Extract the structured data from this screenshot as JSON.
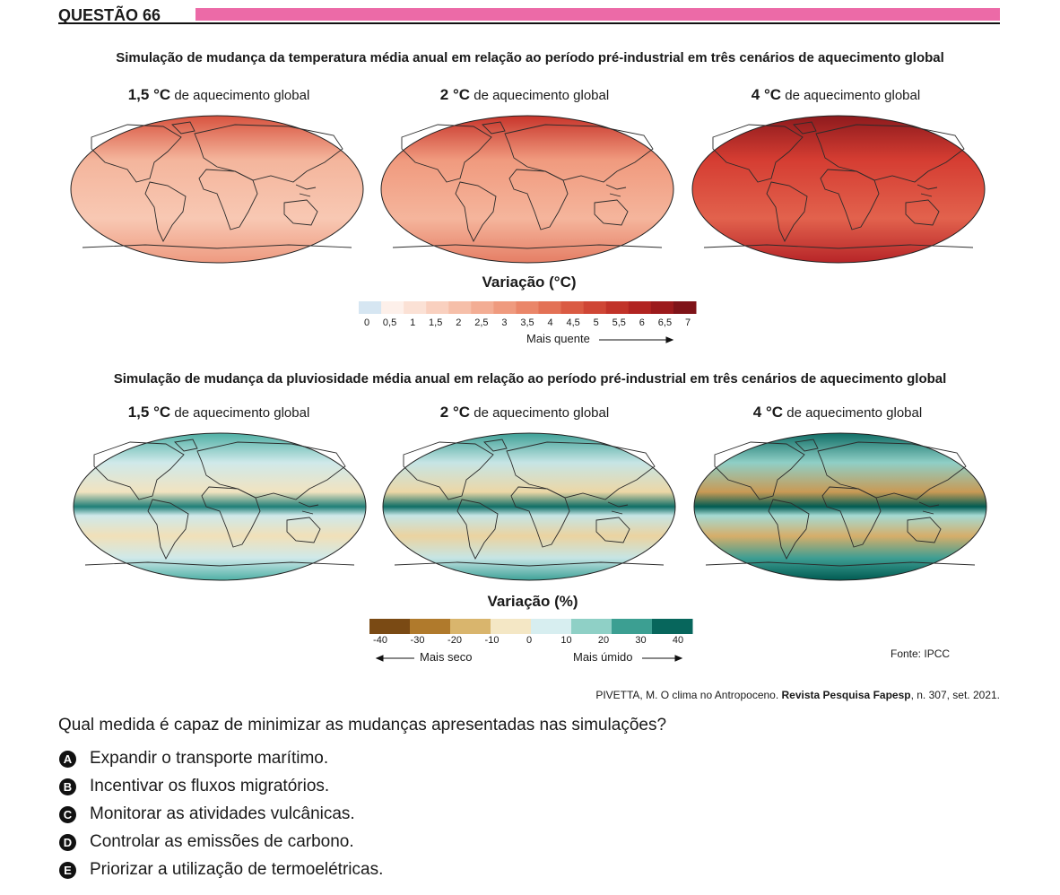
{
  "header": {
    "title": "QUESTÃO 66"
  },
  "figure1": {
    "title": "Simulação de mudança da temperatura média anual em relação ao período pré-industrial em três cenários de aquecimento global",
    "panels": [
      {
        "level": "1,5 °C",
        "suffix": "de aquecimento global"
      },
      {
        "level": "2 °C",
        "suffix": "de aquecimento global"
      },
      {
        "level": "4 °C",
        "suffix": "de aquecimento global"
      }
    ],
    "legend": {
      "title": "Variação (°C)",
      "ticks": [
        "0",
        "0,5",
        "1",
        "1,5",
        "2",
        "2,5",
        "3",
        "3,5",
        "4",
        "4,5",
        "5",
        "5,5",
        "6",
        "6,5",
        "7"
      ],
      "note": "Mais quente"
    }
  },
  "figure2": {
    "title": "Simulação de mudança da pluviosidade média anual em relação ao período pré-industrial em três cenários de aquecimento global",
    "panels": [
      {
        "level": "1,5 °C",
        "suffix": "de aquecimento global"
      },
      {
        "level": "2 °C",
        "suffix": "de aquecimento global"
      },
      {
        "level": "4 °C",
        "suffix": "de aquecimento global"
      }
    ],
    "legend": {
      "title": "Variação (%)",
      "ticks": [
        "-40",
        "-30",
        "-20",
        "-10",
        "0",
        "10",
        "20",
        "30",
        "40"
      ],
      "note_left": "Mais seco",
      "note_right": "Mais úmido"
    },
    "source": "Fonte: IPCC"
  },
  "citation": {
    "text1": "PIVETTA, M. O clima no Antropoceno. ",
    "journal": "Revista Pesquisa Fapesp",
    "text2": ", n. 307, set. 2021."
  },
  "question": "Qual medida é capaz de minimizar as mudanças apresentadas nas simulações?",
  "options": [
    {
      "letter": "A",
      "text": "Expandir o transporte marítimo."
    },
    {
      "letter": "B",
      "text": "Incentivar os fluxos migratórios."
    },
    {
      "letter": "C",
      "text": "Monitorar as atividades vulcânicas."
    },
    {
      "letter": "D",
      "text": "Controlar as emissões de carbono."
    },
    {
      "letter": "E",
      "text": "Priorizar a utilização de termoelétricas."
    }
  ]
}
